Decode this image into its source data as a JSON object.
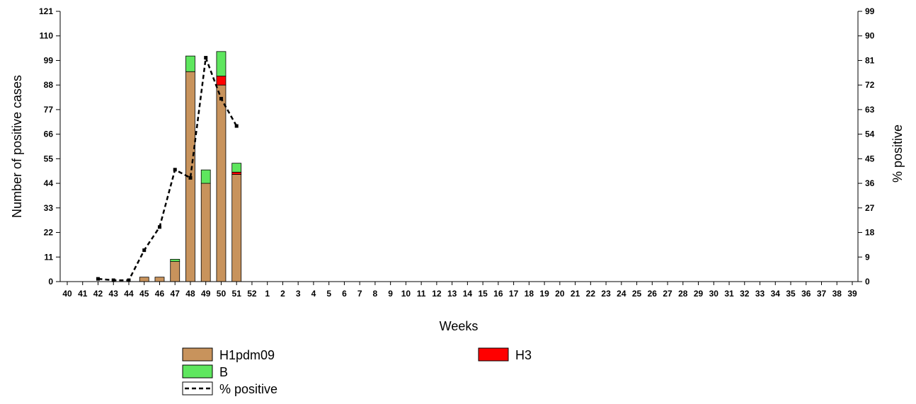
{
  "chart_data": {
    "type": "bar",
    "stacked": true,
    "xlabel": "Weeks",
    "ylabel": "Number of positive cases",
    "y2label": "% positive",
    "ylim": [
      0,
      121
    ],
    "y2lim": [
      0,
      99
    ],
    "yticks": [
      "0",
      "11",
      "22",
      "33",
      "44",
      "55",
      "66",
      "77",
      "88",
      "99",
      "110",
      "121"
    ],
    "y2ticks": [
      "0",
      "9",
      "18",
      "27",
      "36",
      "45",
      "54",
      "63",
      "72",
      "81",
      "90",
      "99"
    ],
    "categories": [
      "40",
      "41",
      "42",
      "43",
      "44",
      "45",
      "46",
      "47",
      "48",
      "49",
      "50",
      "51",
      "52",
      "1",
      "2",
      "3",
      "4",
      "5",
      "6",
      "7",
      "8",
      "9",
      "10",
      "11",
      "12",
      "13",
      "14",
      "15",
      "16",
      "17",
      "18",
      "19",
      "20",
      "21",
      "22",
      "23",
      "24",
      "25",
      "26",
      "27",
      "28",
      "29",
      "30",
      "31",
      "32",
      "33",
      "34",
      "35",
      "36",
      "37",
      "38",
      "39"
    ],
    "series": [
      {
        "name": "H1pdm09",
        "color": "#c8935c",
        "values": [
          0,
          0,
          0,
          0,
          0,
          2,
          2,
          9,
          94,
          44,
          88,
          48,
          0,
          0,
          0,
          0,
          0,
          0,
          0,
          0,
          0,
          0,
          0,
          0,
          0,
          0,
          0,
          0,
          0,
          0,
          0,
          0,
          0,
          0,
          0,
          0,
          0,
          0,
          0,
          0,
          0,
          0,
          0,
          0,
          0,
          0,
          0,
          0,
          0,
          0,
          0,
          0
        ]
      },
      {
        "name": "H3",
        "color": "#ff0000",
        "values": [
          0,
          0,
          0,
          0,
          0,
          0,
          0,
          0,
          0,
          0,
          4,
          1,
          0,
          0,
          0,
          0,
          0,
          0,
          0,
          0,
          0,
          0,
          0,
          0,
          0,
          0,
          0,
          0,
          0,
          0,
          0,
          0,
          0,
          0,
          0,
          0,
          0,
          0,
          0,
          0,
          0,
          0,
          0,
          0,
          0,
          0,
          0,
          0,
          0,
          0,
          0,
          0
        ]
      },
      {
        "name": "B",
        "color": "#5ee65e",
        "values": [
          0,
          0,
          0,
          0,
          0,
          0,
          0,
          1,
          7,
          6,
          11,
          4,
          0,
          0,
          0,
          0,
          0,
          0,
          0,
          0,
          0,
          0,
          0,
          0,
          0,
          0,
          0,
          0,
          0,
          0,
          0,
          0,
          0,
          0,
          0,
          0,
          0,
          0,
          0,
          0,
          0,
          0,
          0,
          0,
          0,
          0,
          0,
          0,
          0,
          0,
          0,
          0
        ]
      }
    ],
    "line": {
      "name": "% positive",
      "axis": "right",
      "style": "dashed",
      "color": "#000000",
      "values": [
        null,
        null,
        1,
        0.5,
        0.5,
        11.5,
        20,
        41,
        38,
        82,
        67,
        57,
        null,
        null,
        null,
        null,
        null,
        null,
        null,
        null,
        null,
        null,
        null,
        null,
        null,
        null,
        null,
        null,
        null,
        null,
        null,
        null,
        null,
        null,
        null,
        null,
        null,
        null,
        null,
        null,
        null,
        null,
        null,
        null,
        null,
        null,
        null,
        null,
        null,
        null,
        null,
        null
      ]
    },
    "legend": [
      {
        "name": "H1pdm09",
        "kind": "box",
        "color": "#c8935c"
      },
      {
        "name": "H3",
        "kind": "box",
        "color": "#ff0000"
      },
      {
        "name": "B",
        "kind": "box",
        "color": "#5ee65e"
      },
      {
        "name": "% positive",
        "kind": "dashed-line",
        "color": "#000000"
      }
    ],
    "legend_position": "bottom",
    "grid": false
  }
}
